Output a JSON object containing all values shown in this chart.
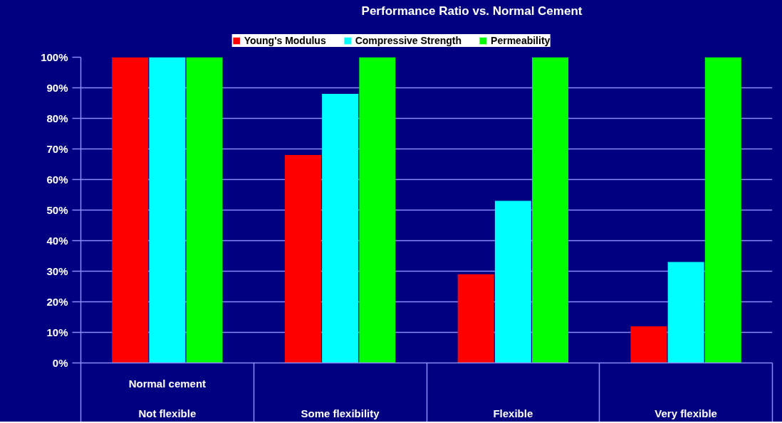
{
  "chart_data": {
    "type": "bar",
    "title": "Performance Ratio vs. Normal Cement",
    "categories": [
      "Normal cement\nNot flexible",
      "Some flexibility",
      "Flexible",
      "Very flexible"
    ],
    "series": [
      {
        "name": "Young's Modulus",
        "color": "#ff0000",
        "values": [
          100,
          68,
          29,
          12
        ]
      },
      {
        "name": "Compressive Strength",
        "color": "#00ffff",
        "values": [
          100,
          88,
          53,
          33
        ]
      },
      {
        "name": "Permeability",
        "color": "#00ff00",
        "values": [
          100,
          100,
          100,
          100
        ]
      }
    ],
    "ylim": [
      0,
      100
    ],
    "yticks": [
      {
        "value": 0,
        "label": "0%"
      },
      {
        "value": 10,
        "label": "10%"
      },
      {
        "value": 20,
        "label": "20%"
      },
      {
        "value": 30,
        "label": "30%"
      },
      {
        "value": 40,
        "label": "40%"
      },
      {
        "value": 50,
        "label": "50%"
      },
      {
        "value": 60,
        "label": "60%"
      },
      {
        "value": 70,
        "label": "70%"
      },
      {
        "value": 80,
        "label": "80%"
      },
      {
        "value": 90,
        "label": "90%"
      },
      {
        "value": 100,
        "label": "100%"
      }
    ],
    "grid": "y",
    "legend": "top"
  }
}
